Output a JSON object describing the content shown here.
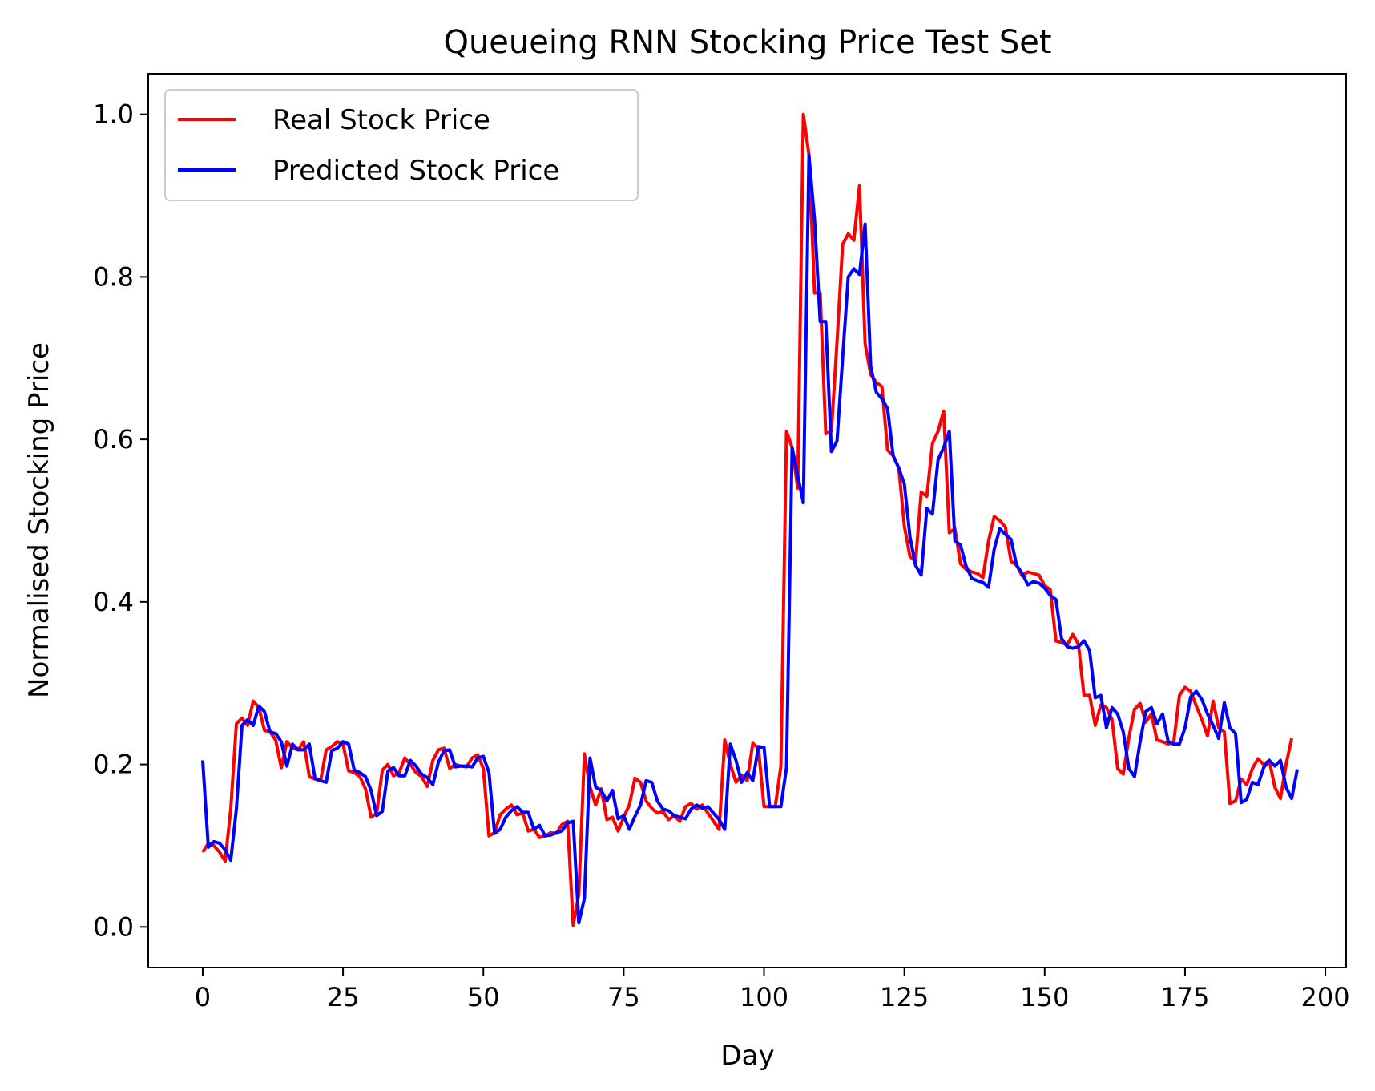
{
  "chart_data": {
    "type": "line",
    "title": "Queueing RNN Stocking Price Test Set",
    "xlabel": "Day",
    "ylabel": "Normalised Stocking Price",
    "xlim": [
      -9.7,
      203.7
    ],
    "ylim": [
      -0.05,
      1.05
    ],
    "xticks": [
      0,
      25,
      50,
      75,
      100,
      125,
      150,
      175,
      200
    ],
    "yticks": [
      0.0,
      0.2,
      0.4,
      0.6,
      0.8,
      1.0
    ],
    "xtick_labels": [
      "0",
      "25",
      "50",
      "75",
      "100",
      "125",
      "150",
      "175",
      "200"
    ],
    "ytick_labels": [
      "0.0",
      "0.2",
      "0.4",
      "0.6",
      "0.8",
      "1.0"
    ],
    "grid": false,
    "legend": "upper-left",
    "series": [
      {
        "name": "Real Stock Price",
        "color": "#ff0000",
        "values": [
          0.092,
          0.103,
          0.1,
          0.092,
          0.081,
          0.145,
          0.25,
          0.257,
          0.248,
          0.278,
          0.27,
          0.242,
          0.24,
          0.23,
          0.196,
          0.228,
          0.22,
          0.218,
          0.228,
          0.185,
          0.182,
          0.18,
          0.218,
          0.222,
          0.228,
          0.225,
          0.192,
          0.19,
          0.185,
          0.17,
          0.135,
          0.14,
          0.193,
          0.2,
          0.186,
          0.19,
          0.208,
          0.2,
          0.19,
          0.185,
          0.173,
          0.205,
          0.218,
          0.22,
          0.195,
          0.2,
          0.198,
          0.197,
          0.208,
          0.212,
          0.195,
          0.112,
          0.116,
          0.138,
          0.145,
          0.15,
          0.138,
          0.14,
          0.118,
          0.12,
          0.11,
          0.112,
          0.116,
          0.115,
          0.126,
          0.13,
          0.002,
          0.04,
          0.213,
          0.172,
          0.15,
          0.17,
          0.132,
          0.135,
          0.118,
          0.135,
          0.15,
          0.183,
          0.178,
          0.155,
          0.146,
          0.14,
          0.142,
          0.132,
          0.137,
          0.13,
          0.148,
          0.152,
          0.145,
          0.15,
          0.14,
          0.13,
          0.12,
          0.23,
          0.2,
          0.178,
          0.187,
          0.18,
          0.226,
          0.22,
          0.148,
          0.148,
          0.148,
          0.198,
          0.61,
          0.59,
          0.54,
          1.0,
          0.95,
          0.78,
          0.78,
          0.607,
          0.61,
          0.72,
          0.84,
          0.853,
          0.845,
          0.912,
          0.718,
          0.68,
          0.67,
          0.665,
          0.587,
          0.58,
          0.565,
          0.493,
          0.456,
          0.45,
          0.535,
          0.53,
          0.595,
          0.61,
          0.635,
          0.485,
          0.49,
          0.447,
          0.44,
          0.437,
          0.435,
          0.43,
          0.475,
          0.505,
          0.5,
          0.492,
          0.45,
          0.445,
          0.432,
          0.437,
          0.435,
          0.433,
          0.42,
          0.415,
          0.352,
          0.35,
          0.347,
          0.36,
          0.348,
          0.285,
          0.285,
          0.248,
          0.273,
          0.27,
          0.255,
          0.195,
          0.188,
          0.233,
          0.268,
          0.275,
          0.252,
          0.262,
          0.23,
          0.228,
          0.225,
          0.228,
          0.285,
          0.295,
          0.29,
          0.272,
          0.255,
          0.235,
          0.278,
          0.245,
          0.24,
          0.152,
          0.155,
          0.182,
          0.175,
          0.195,
          0.207,
          0.2,
          0.205,
          0.172,
          0.158,
          0.2,
          0.232
        ]
      },
      {
        "name": "Predicted Stock Price",
        "color": "#0000ff",
        "values": [
          0.205,
          0.098,
          0.105,
          0.103,
          0.095,
          0.082,
          0.145,
          0.248,
          0.255,
          0.248,
          0.272,
          0.265,
          0.24,
          0.238,
          0.228,
          0.198,
          0.225,
          0.218,
          0.218,
          0.225,
          0.183,
          0.18,
          0.178,
          0.217,
          0.22,
          0.228,
          0.225,
          0.193,
          0.19,
          0.185,
          0.168,
          0.137,
          0.142,
          0.192,
          0.196,
          0.186,
          0.186,
          0.205,
          0.198,
          0.188,
          0.184,
          0.175,
          0.203,
          0.217,
          0.218,
          0.197,
          0.198,
          0.198,
          0.197,
          0.208,
          0.21,
          0.19,
          0.115,
          0.12,
          0.135,
          0.143,
          0.148,
          0.141,
          0.141,
          0.12,
          0.125,
          0.112,
          0.113,
          0.116,
          0.118,
          0.128,
          0.13,
          0.005,
          0.035,
          0.208,
          0.172,
          0.168,
          0.155,
          0.168,
          0.133,
          0.137,
          0.12,
          0.136,
          0.15,
          0.18,
          0.178,
          0.155,
          0.145,
          0.143,
          0.137,
          0.135,
          0.133,
          0.145,
          0.15,
          0.146,
          0.148,
          0.14,
          0.132,
          0.12,
          0.225,
          0.205,
          0.178,
          0.19,
          0.18,
          0.222,
          0.221,
          0.148,
          0.148,
          0.148,
          0.196,
          0.59,
          0.555,
          0.522,
          0.95,
          0.87,
          0.745,
          0.745,
          0.585,
          0.598,
          0.7,
          0.8,
          0.81,
          0.803,
          0.865,
          0.69,
          0.658,
          0.65,
          0.638,
          0.58,
          0.565,
          0.545,
          0.48,
          0.445,
          0.433,
          0.515,
          0.508,
          0.575,
          0.59,
          0.61,
          0.475,
          0.47,
          0.444,
          0.429,
          0.426,
          0.424,
          0.418,
          0.465,
          0.49,
          0.483,
          0.477,
          0.445,
          0.435,
          0.421,
          0.425,
          0.423,
          0.417,
          0.408,
          0.403,
          0.355,
          0.345,
          0.343,
          0.345,
          0.352,
          0.34,
          0.282,
          0.285,
          0.245,
          0.27,
          0.262,
          0.24,
          0.195,
          0.185,
          0.228,
          0.265,
          0.27,
          0.25,
          0.262,
          0.228,
          0.225,
          0.225,
          0.245,
          0.283,
          0.29,
          0.28,
          0.262,
          0.248,
          0.232,
          0.276,
          0.245,
          0.238,
          0.153,
          0.157,
          0.178,
          0.175,
          0.196,
          0.205,
          0.198,
          0.205,
          0.172,
          0.158,
          0.194
        ]
      }
    ]
  }
}
